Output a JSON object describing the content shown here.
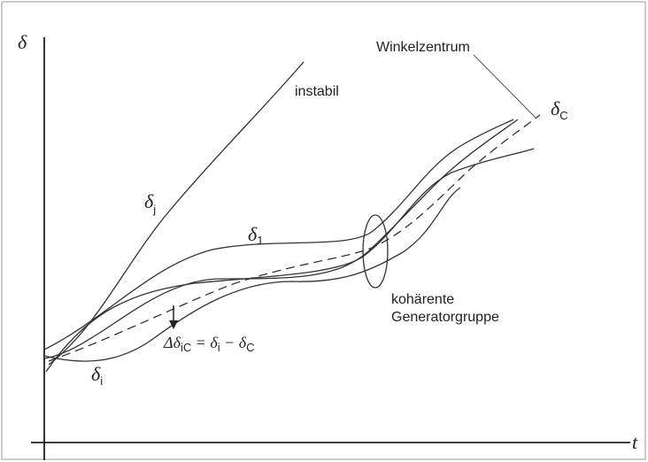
{
  "axes": {
    "y_label": "δ",
    "x_label": "t"
  },
  "labels": {
    "center_name": "Winkelzentrum",
    "center_symbol": {
      "symbol": "δ",
      "sub": "C"
    },
    "unstable": "instabil",
    "curve_j": {
      "symbol": "δ",
      "sub": "j"
    },
    "curve_1": {
      "symbol": "δ",
      "sub": "1"
    },
    "curve_i": {
      "symbol": "δ",
      "sub": "i"
    },
    "group_line1": "kohärente",
    "group_line2": "Generatorgruppe"
  },
  "formula": {
    "lhs": "Δδ",
    "lhs_sub": "iC",
    "eq": " = δ",
    "a_sub": "i",
    "minus": " − δ",
    "b_sub": "C"
  }
}
